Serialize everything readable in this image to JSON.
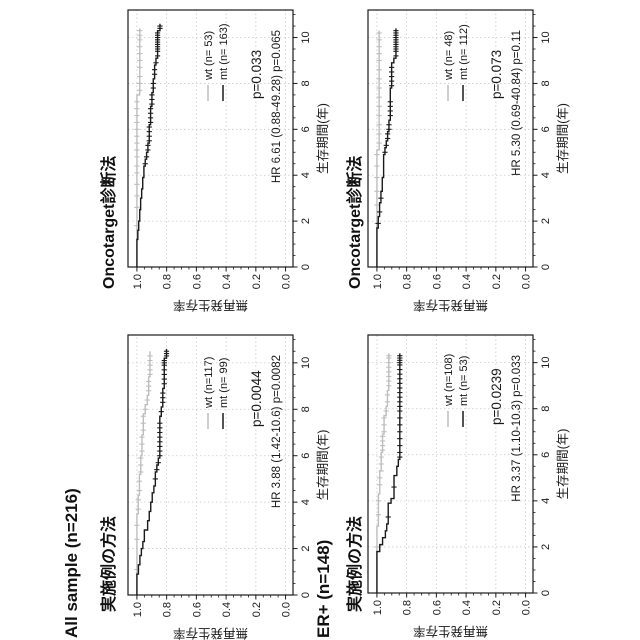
{
  "figure": {
    "group_headers": [
      {
        "label": "All sample (n=216)"
      },
      {
        "label": "ER+ (n=148)"
      }
    ],
    "colors": {
      "wt": "#bdbdbd",
      "mt": "#1a1a1a",
      "grid": "#c9c9c9",
      "axis": "#1a1a1a"
    }
  },
  "chart_data": [
    {
      "type": "line",
      "km_style": "step",
      "title": "実施例の方法",
      "group": "All sample (n=216)",
      "xlabel": "生存期間(年)",
      "ylabel": "無再発生存率",
      "xlim": [
        0,
        11.2
      ],
      "ylim": [
        -0.05,
        1.06
      ],
      "xticks": [
        0,
        2,
        4,
        6,
        8,
        10
      ],
      "yticks": [
        0,
        0.2,
        0.4,
        0.6,
        0.8,
        1.0
      ],
      "grid": true,
      "legend_position": "center right",
      "series": [
        {
          "name": "wt (n=117)",
          "color": "#bdbdbd",
          "end": 10.5,
          "drops": [
            [
              3.5,
              0.991
            ],
            [
              4.3,
              0.983
            ],
            [
              5.2,
              0.974
            ],
            [
              6.0,
              0.966
            ],
            [
              6.9,
              0.957
            ],
            [
              7.8,
              0.944
            ],
            [
              8.2,
              0.93
            ],
            [
              8.6,
              0.921
            ],
            [
              9.4,
              0.912
            ]
          ],
          "censors": [
            1.1,
            2.4,
            3.0,
            3.7,
            4.1,
            4.5,
            4.9,
            5.3,
            5.6,
            5.9,
            6.2,
            6.5,
            6.8,
            7.1,
            7.4,
            7.7,
            8.0,
            8.4,
            8.8,
            9.0,
            9.2,
            9.5,
            9.7,
            9.9,
            10.1,
            10.3
          ]
        },
        {
          "name": "mt (n= 99)",
          "color": "#1a1a1a",
          "end": 10.6,
          "drops": [
            [
              0.9,
              0.99
            ],
            [
              1.3,
              0.98
            ],
            [
              1.7,
              0.97
            ],
            [
              2.0,
              0.96
            ],
            [
              2.3,
              0.95
            ],
            [
              2.8,
              0.928
            ],
            [
              3.2,
              0.917
            ],
            [
              3.6,
              0.907
            ],
            [
              4.0,
              0.897
            ],
            [
              4.4,
              0.886
            ],
            [
              4.7,
              0.876
            ],
            [
              5.3,
              0.866
            ],
            [
              5.6,
              0.856
            ],
            [
              5.9,
              0.846
            ],
            [
              7.7,
              0.836
            ],
            [
              8.1,
              0.826
            ],
            [
              8.9,
              0.816
            ],
            [
              10.2,
              0.801
            ]
          ],
          "censors": [
            5.0,
            5.4,
            5.7,
            6.0,
            6.2,
            6.4,
            6.6,
            6.8,
            7.0,
            7.2,
            7.4,
            7.9,
            8.3,
            8.5,
            8.7,
            9.1,
            9.3,
            9.5,
            9.7,
            9.9,
            10.0,
            10.1,
            10.3,
            10.4,
            10.5
          ]
        }
      ],
      "p_label": "p=0.0044",
      "hr_label": "HR 3.88 (1.42-10.6) p=0.0082"
    },
    {
      "type": "line",
      "km_style": "step",
      "title": "Oncotarget診断法",
      "group": "All sample (n=216)",
      "xlabel": "生存期間(年)",
      "ylabel": "無再発生存率",
      "xlim": [
        0,
        11.2
      ],
      "ylim": [
        -0.05,
        1.06
      ],
      "xticks": [
        0,
        2,
        4,
        6,
        8,
        10
      ],
      "yticks": [
        0,
        0.2,
        0.4,
        0.6,
        0.8,
        1.0
      ],
      "grid": true,
      "legend_position": "center right",
      "series": [
        {
          "name": "wt (n= 53)",
          "color": "#bdbdbd",
          "end": 10.4,
          "drops": [
            [
              7.5,
              0.981
            ]
          ],
          "censors": [
            1.8,
            2.6,
            3.1,
            3.6,
            4.1,
            4.4,
            4.8,
            5.1,
            5.4,
            5.7,
            6.0,
            6.3,
            6.6,
            6.9,
            7.2,
            7.7,
            8.0,
            8.3,
            8.7,
            9.0,
            9.3,
            9.6,
            9.9,
            10.1,
            10.3
          ]
        },
        {
          "name": "mt (n= 163)",
          "color": "#1a1a1a",
          "end": 10.6,
          "drops": [
            [
              1.2,
              0.994
            ],
            [
              1.6,
              0.988
            ],
            [
              2.0,
              0.981
            ],
            [
              2.5,
              0.975
            ],
            [
              3.0,
              0.968
            ],
            [
              3.4,
              0.961
            ],
            [
              3.9,
              0.953
            ],
            [
              4.4,
              0.944
            ],
            [
              4.7,
              0.935
            ],
            [
              5.0,
              0.926
            ],
            [
              5.4,
              0.917
            ],
            [
              6.2,
              0.908
            ],
            [
              7.0,
              0.899
            ],
            [
              7.6,
              0.89
            ],
            [
              8.2,
              0.881
            ],
            [
              8.8,
              0.872
            ],
            [
              9.1,
              0.861
            ],
            [
              10.3,
              0.845
            ]
          ],
          "censors": [
            4.5,
            4.8,
            5.1,
            5.3,
            5.5,
            5.7,
            5.9,
            6.1,
            6.3,
            6.5,
            6.7,
            6.9,
            7.1,
            7.3,
            7.5,
            7.8,
            8.0,
            8.4,
            8.6,
            8.9,
            9.2,
            9.4,
            9.5,
            9.6,
            9.7,
            9.8,
            9.9,
            10.0,
            10.1,
            10.2,
            10.4,
            10.5
          ]
        }
      ],
      "p_label": "p=0.033",
      "hr_label": "HR 6.61 (0.88-49.28) p=0.065"
    },
    {
      "type": "line",
      "km_style": "step",
      "title": "実施例の方法",
      "group": "ER+ (n=148)",
      "xlabel": "生存期間(年)",
      "ylabel": "無再発生存率",
      "xlim": [
        0,
        11.2
      ],
      "ylim": [
        -0.05,
        1.06
      ],
      "xticks": [
        0,
        2,
        4,
        6,
        8,
        10
      ],
      "yticks": [
        0,
        0.2,
        0.4,
        0.6,
        0.8,
        1.0
      ],
      "grid": true,
      "legend_position": "center right",
      "series": [
        {
          "name": "wt (n=108)",
          "color": "#bdbdbd",
          "end": 10.4,
          "drops": [
            [
              2.9,
              0.99
            ],
            [
              4.3,
              0.981
            ],
            [
              5.3,
              0.971
            ],
            [
              6.1,
              0.962
            ],
            [
              6.9,
              0.952
            ],
            [
              7.7,
              0.938
            ],
            [
              8.1,
              0.929
            ],
            [
              8.8,
              0.92
            ]
          ],
          "censors": [
            2.0,
            3.4,
            4.0,
            4.7,
            5.0,
            5.3,
            5.6,
            5.9,
            6.2,
            6.4,
            6.6,
            6.8,
            7.0,
            7.3,
            7.6,
            7.9,
            8.3,
            8.6,
            9.0,
            9.2,
            9.4,
            9.6,
            9.8,
            10.0,
            10.2,
            10.3
          ]
        },
        {
          "name": "mt (n= 53)",
          "color": "#1a1a1a",
          "end": 10.4,
          "drops": [
            [
              1.8,
              0.981
            ],
            [
              2.1,
              0.962
            ],
            [
              2.4,
              0.943
            ],
            [
              2.7,
              0.934
            ],
            [
              3.0,
              0.924
            ],
            [
              3.9,
              0.905
            ],
            [
              4.1,
              0.885
            ],
            [
              5.1,
              0.866
            ],
            [
              5.5,
              0.856
            ],
            [
              5.8,
              0.846
            ]
          ],
          "censors": [
            3.3,
            4.6,
            5.9,
            6.1,
            6.4,
            6.7,
            7.0,
            7.3,
            7.6,
            7.9,
            8.1,
            8.3,
            8.5,
            8.7,
            8.9,
            9.1,
            9.3,
            9.5,
            9.7,
            9.9,
            10.0,
            10.1,
            10.2,
            10.3
          ]
        }
      ],
      "p_label": "p=0.0239",
      "hr_label": "HR 3.37 (1.10-10.3) p=0.033"
    },
    {
      "type": "line",
      "km_style": "step",
      "title": "Oncotarget診断法",
      "group": "ER+ (n=148)",
      "xlabel": "生存期間(年)",
      "ylabel": "無再発生存率",
      "xlim": [
        0,
        11.2
      ],
      "ylim": [
        -0.05,
        1.06
      ],
      "xticks": [
        0,
        2,
        4,
        6,
        8,
        10
      ],
      "yticks": [
        0,
        0.2,
        0.4,
        0.6,
        0.8,
        1.0
      ],
      "grid": true,
      "legend_position": "center right",
      "series": [
        {
          "name": "wt (n= 48)",
          "color": "#bdbdbd",
          "end": 10.3,
          "drops": [
            [
              5.1,
              0.985
            ]
          ],
          "censors": [
            1.9,
            2.7,
            3.3,
            3.9,
            4.4,
            4.9,
            5.4,
            5.8,
            6.2,
            6.6,
            7.0,
            7.4,
            7.8,
            8.2,
            8.6,
            9.0,
            9.3,
            9.6,
            9.9,
            10.2
          ]
        },
        {
          "name": "mt (n= 112)",
          "color": "#1a1a1a",
          "end": 10.4,
          "drops": [
            [
              1.7,
              0.991
            ],
            [
              2.2,
              0.982
            ],
            [
              2.8,
              0.973
            ],
            [
              3.3,
              0.964
            ],
            [
              3.9,
              0.955
            ],
            [
              4.9,
              0.946
            ],
            [
              5.2,
              0.937
            ],
            [
              5.5,
              0.928
            ],
            [
              5.9,
              0.919
            ],
            [
              6.4,
              0.91
            ],
            [
              7.8,
              0.901
            ],
            [
              8.9,
              0.886
            ],
            [
              9.1,
              0.872
            ]
          ],
          "censors": [
            1.9,
            2.4,
            3.0,
            5.0,
            5.3,
            5.6,
            5.8,
            6.0,
            6.2,
            6.6,
            6.8,
            7.0,
            7.2,
            7.9,
            8.1,
            8.3,
            8.5,
            8.7,
            9.2,
            9.4,
            9.5,
            9.6,
            9.7,
            9.8,
            9.9,
            10.0,
            10.1,
            10.2,
            10.3
          ]
        }
      ],
      "p_label": "p=0.073",
      "hr_label": "HR 5.30 (0.69-40.84) p=0.11"
    }
  ]
}
